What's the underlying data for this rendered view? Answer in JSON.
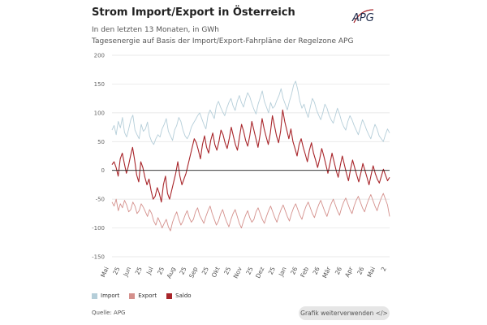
{
  "header": {
    "title": "Strom Import/Export in Österreich",
    "subtitle1": "In den letzten 13 Monaten, in GWh",
    "subtitle2": "Tagesenergie auf Basis der Import/Export-Fahrpläne der Regelzone APG",
    "logo_text": "APG"
  },
  "footer": {
    "source": "Quelle: APG",
    "embed_button": "Grafik weiterverwenden </>"
  },
  "colors": {
    "import": "#b5ced9",
    "export": "#d4908c",
    "saldo": "#a8252a"
  },
  "chart_data": {
    "type": "line",
    "ylim": [
      -150,
      200
    ],
    "yticks": [
      200,
      150,
      100,
      50,
      0,
      -50,
      -100,
      -150
    ],
    "x_labels": [
      "Mai",
      "25",
      "Jun",
      "25",
      "Jul",
      "25",
      "Aug",
      "25",
      "Sep",
      "25",
      "Okt",
      "25",
      "Nov",
      "25",
      "Dez",
      "25",
      "Jan",
      "26",
      "Feb",
      "26",
      "Mär",
      "26",
      "Apr",
      "26",
      "Mai",
      "2"
    ],
    "legend": [
      "Import",
      "Export",
      "Saldo"
    ],
    "series": [
      {
        "name": "Import",
        "values": [
          70,
          78,
          62,
          85,
          74,
          92,
          66,
          58,
          72,
          88,
          96,
          70,
          62,
          55,
          80,
          68,
          72,
          84,
          60,
          50,
          45,
          55,
          62,
          58,
          72,
          80,
          90,
          68,
          60,
          52,
          70,
          78,
          92,
          85,
          70,
          60,
          55,
          62,
          75,
          82,
          88,
          95,
          100,
          90,
          80,
          72,
          96,
          105,
          98,
          90,
          112,
          120,
          110,
          102,
          95,
          108,
          118,
          125,
          112,
          104,
          120,
          130,
          118,
          110,
          124,
          135,
          128,
          116,
          106,
          98,
          115,
          126,
          138,
          120,
          110,
          100,
          118,
          108,
          112,
          122,
          130,
          142,
          125,
          115,
          105,
          120,
          132,
          148,
          155,
          140,
          120,
          108,
          115,
          102,
          92,
          110,
          125,
          118,
          105,
          96,
          88,
          100,
          115,
          108,
          96,
          88,
          82,
          95,
          108,
          98,
          85,
          76,
          70,
          85,
          95,
          88,
          78,
          70,
          62,
          75,
          88,
          80,
          70,
          62,
          55,
          68,
          80,
          72,
          60,
          55,
          50,
          62,
          72,
          65
        ]
      },
      {
        "name": "Export",
        "values": [
          -55,
          -62,
          -50,
          -70,
          -58,
          -65,
          -52,
          -60,
          -72,
          -68,
          -55,
          -62,
          -75,
          -70,
          -58,
          -64,
          -72,
          -80,
          -68,
          -75,
          -88,
          -95,
          -82,
          -90,
          -100,
          -92,
          -85,
          -98,
          -105,
          -90,
          -80,
          -72,
          -85,
          -95,
          -88,
          -78,
          -70,
          -82,
          -90,
          -85,
          -72,
          -65,
          -78,
          -85,
          -92,
          -80,
          -70,
          -62,
          -75,
          -85,
          -95,
          -88,
          -76,
          -68,
          -80,
          -90,
          -98,
          -85,
          -75,
          -68,
          -80,
          -92,
          -100,
          -88,
          -78,
          -70,
          -82,
          -90,
          -85,
          -72,
          -65,
          -75,
          -85,
          -92,
          -80,
          -70,
          -62,
          -72,
          -82,
          -90,
          -78,
          -68,
          -60,
          -70,
          -80,
          -88,
          -75,
          -65,
          -58,
          -68,
          -78,
          -85,
          -72,
          -62,
          -55,
          -65,
          -75,
          -82,
          -70,
          -60,
          -52,
          -62,
          -72,
          -80,
          -68,
          -58,
          -50,
          -60,
          -70,
          -78,
          -65,
          -55,
          -48,
          -58,
          -68,
          -75,
          -62,
          -52,
          -45,
          -55,
          -65,
          -72,
          -60,
          -50,
          -42,
          -52,
          -62,
          -70,
          -58,
          -48,
          -40,
          -50,
          -60,
          -80
        ]
      },
      {
        "name": "Saldo",
        "values": [
          10,
          15,
          5,
          -10,
          20,
          30,
          12,
          -5,
          8,
          25,
          40,
          18,
          -8,
          -20,
          15,
          5,
          -12,
          -25,
          -15,
          -35,
          -50,
          -45,
          -30,
          -40,
          -55,
          -25,
          -10,
          -40,
          -50,
          -35,
          -20,
          -5,
          15,
          -10,
          -25,
          -15,
          -5,
          10,
          25,
          40,
          55,
          48,
          35,
          20,
          45,
          60,
          40,
          30,
          52,
          65,
          45,
          35,
          50,
          70,
          62,
          48,
          38,
          55,
          75,
          60,
          45,
          35,
          58,
          80,
          68,
          52,
          42,
          60,
          85,
          70,
          55,
          40,
          62,
          90,
          72,
          58,
          45,
          65,
          95,
          78,
          60,
          48,
          68,
          105,
          85,
          70,
          55,
          72,
          50,
          38,
          25,
          45,
          55,
          40,
          28,
          15,
          35,
          48,
          30,
          18,
          5,
          20,
          38,
          25,
          10,
          -5,
          12,
          30,
          15,
          0,
          -12,
          8,
          25,
          10,
          -5,
          -18,
          2,
          18,
          5,
          -8,
          -20,
          -5,
          12,
          0,
          -12,
          -25,
          -8,
          8,
          -5,
          -15,
          -22,
          -10,
          2,
          -8,
          -18,
          -12
        ]
      }
    ]
  }
}
